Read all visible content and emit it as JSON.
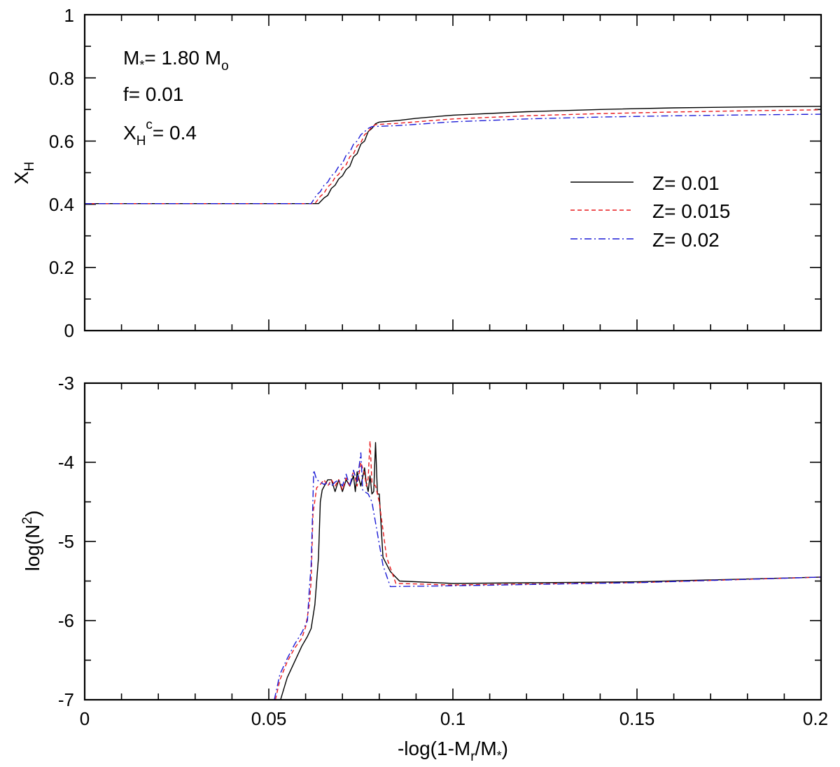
{
  "chart_data": [
    {
      "type": "line",
      "panel": "top",
      "ylabel": "X",
      "ylabel_sub": "H",
      "xlim": [
        0,
        0.2
      ],
      "ylim": [
        0,
        1
      ],
      "yticks": [
        0,
        0.2,
        0.4,
        0.6,
        0.8,
        1
      ],
      "ytick_labels": [
        "0",
        "0.2",
        "0.4",
        "0.6",
        "0.8",
        "1"
      ],
      "annotations": {
        "mass": {
          "prefix": "M",
          "prefix_sub": "*",
          "mid": "= 1.80 M",
          "mid_sub": "o"
        },
        "overshoot": "f= 0.01",
        "central_h": {
          "prefix": "X",
          "prefix_sub": "H",
          "prefix_sup": "c",
          "rest": "= 0.4"
        }
      },
      "legend": {
        "position": "center-right",
        "entries": [
          "Z= 0.01",
          "Z= 0.015",
          "Z= 0.02"
        ]
      },
      "series": [
        {
          "name": "Z= 0.01",
          "color": "#000000",
          "dash": "solid",
          "x": [
            0.0,
            0.0635,
            0.065,
            0.066,
            0.067,
            0.068,
            0.069,
            0.07,
            0.071,
            0.072,
            0.073,
            0.074,
            0.075,
            0.076,
            0.077,
            0.078,
            0.079,
            0.08,
            0.085,
            0.09,
            0.1,
            0.12,
            0.14,
            0.16,
            0.18,
            0.2
          ],
          "y": [
            0.402,
            0.402,
            0.42,
            0.428,
            0.45,
            0.46,
            0.48,
            0.49,
            0.51,
            0.52,
            0.55,
            0.56,
            0.59,
            0.6,
            0.63,
            0.64,
            0.655,
            0.66,
            0.665,
            0.672,
            0.682,
            0.693,
            0.7,
            0.705,
            0.708,
            0.71
          ]
        },
        {
          "name": "Z= 0.015",
          "color": "#e8191c",
          "dash": "dashed",
          "x": [
            0.0,
            0.0625,
            0.064,
            0.065,
            0.066,
            0.067,
            0.068,
            0.069,
            0.07,
            0.071,
            0.072,
            0.073,
            0.074,
            0.075,
            0.076,
            0.077,
            0.078,
            0.079,
            0.085,
            0.09,
            0.1,
            0.12,
            0.14,
            0.16,
            0.18,
            0.2
          ],
          "y": [
            0.402,
            0.402,
            0.425,
            0.435,
            0.455,
            0.465,
            0.485,
            0.495,
            0.515,
            0.525,
            0.55,
            0.56,
            0.585,
            0.595,
            0.62,
            0.63,
            0.645,
            0.652,
            0.656,
            0.661,
            0.67,
            0.68,
            0.687,
            0.692,
            0.696,
            0.699
          ]
        },
        {
          "name": "Z= 0.02",
          "color": "#1a1ad6",
          "dash": "dashdot",
          "x": [
            0.0,
            0.0615,
            0.063,
            0.064,
            0.065,
            0.066,
            0.067,
            0.068,
            0.069,
            0.07,
            0.071,
            0.072,
            0.073,
            0.074,
            0.075,
            0.076,
            0.077,
            0.078,
            0.085,
            0.09,
            0.1,
            0.12,
            0.14,
            0.16,
            0.18,
            0.2
          ],
          "y": [
            0.402,
            0.402,
            0.43,
            0.44,
            0.46,
            0.47,
            0.49,
            0.5,
            0.52,
            0.53,
            0.555,
            0.565,
            0.59,
            0.6,
            0.62,
            0.63,
            0.64,
            0.646,
            0.649,
            0.653,
            0.661,
            0.67,
            0.676,
            0.68,
            0.683,
            0.685
          ]
        }
      ]
    },
    {
      "type": "line",
      "panel": "bottom",
      "xlabel": {
        "a": "-log(1-M",
        "a_sub": "r",
        "b": "/M",
        "b_sub": "*",
        "c": ")"
      },
      "ylabel": {
        "a": "log(N",
        "sup": "2",
        "b": ")"
      },
      "xlim": [
        0,
        0.2
      ],
      "ylim": [
        -7,
        -3
      ],
      "xticks": [
        0,
        0.05,
        0.1,
        0.15,
        0.2
      ],
      "xtick_labels": [
        "0",
        "0.05",
        "0.1",
        "0.15",
        "0.2"
      ],
      "yticks": [
        -7,
        -6,
        -5,
        -4,
        -3
      ],
      "ytick_labels": [
        "-7",
        "-6",
        "-5",
        "-4",
        "-3"
      ],
      "series": [
        {
          "name": "Z= 0.01",
          "color": "#000000",
          "dash": "solid",
          "x": [
            0.0532,
            0.055,
            0.057,
            0.059,
            0.0605,
            0.0615,
            0.0625,
            0.0635,
            0.064,
            0.0645,
            0.066,
            0.067,
            0.068,
            0.069,
            0.07,
            0.071,
            0.072,
            0.073,
            0.0735,
            0.074,
            0.075,
            0.076,
            0.0765,
            0.077,
            0.0775,
            0.078,
            0.0785,
            0.079,
            0.0795,
            0.08,
            0.081,
            0.083,
            0.0855,
            0.1,
            0.15,
            0.2
          ],
          "y": [
            -7.0,
            -6.72,
            -6.52,
            -6.32,
            -6.2,
            -6.1,
            -5.8,
            -5.2,
            -4.5,
            -4.35,
            -4.22,
            -4.22,
            -4.37,
            -4.22,
            -4.37,
            -4.22,
            -4.3,
            -4.17,
            -4.37,
            -4.12,
            -4.3,
            -4.07,
            -4.27,
            -4.37,
            -4.17,
            -4.4,
            -4.37,
            -3.75,
            -4.4,
            -4.4,
            -5.2,
            -5.38,
            -5.5,
            -5.53,
            -5.51,
            -5.45
          ]
        },
        {
          "name": "Z= 0.015",
          "color": "#e8191c",
          "dash": "dashed",
          "x": [
            0.0518,
            0.053,
            0.055,
            0.057,
            0.059,
            0.06,
            0.061,
            0.0615,
            0.062,
            0.063,
            0.064,
            0.065,
            0.066,
            0.067,
            0.068,
            0.069,
            0.07,
            0.071,
            0.072,
            0.073,
            0.074,
            0.075,
            0.076,
            0.0765,
            0.077,
            0.0775,
            0.078,
            0.079,
            0.08,
            0.082,
            0.0845,
            0.1,
            0.15,
            0.2
          ],
          "y": [
            -7.0,
            -6.75,
            -6.52,
            -6.35,
            -6.22,
            -6.08,
            -5.8,
            -5.5,
            -4.65,
            -4.32,
            -4.28,
            -4.22,
            -4.3,
            -4.22,
            -4.3,
            -4.22,
            -4.35,
            -4.2,
            -4.3,
            -4.1,
            -4.3,
            -4.0,
            -4.15,
            -4.3,
            -4.2,
            -3.73,
            -4.25,
            -4.3,
            -4.5,
            -5.2,
            -5.53,
            -5.55,
            -5.52,
            -5.45
          ]
        },
        {
          "name": "Z= 0.02",
          "color": "#1a1ad6",
          "dash": "dashdot",
          "x": [
            0.0515,
            0.053,
            0.055,
            0.057,
            0.059,
            0.0605,
            0.061,
            0.0615,
            0.0622,
            0.063,
            0.064,
            0.065,
            0.066,
            0.067,
            0.068,
            0.069,
            0.07,
            0.071,
            0.072,
            0.073,
            0.074,
            0.075,
            0.0755,
            0.076,
            0.077,
            0.078,
            0.081,
            0.083,
            0.1,
            0.15,
            0.2
          ],
          "y": [
            -7.0,
            -6.68,
            -6.48,
            -6.3,
            -6.15,
            -6.0,
            -5.6,
            -5.3,
            -4.1,
            -4.22,
            -4.25,
            -4.28,
            -4.25,
            -4.3,
            -4.25,
            -4.22,
            -4.3,
            -4.15,
            -4.3,
            -4.1,
            -4.25,
            -3.88,
            -4.35,
            -4.37,
            -4.4,
            -4.5,
            -5.3,
            -5.57,
            -5.56,
            -5.52,
            -5.45
          ]
        }
      ]
    }
  ]
}
